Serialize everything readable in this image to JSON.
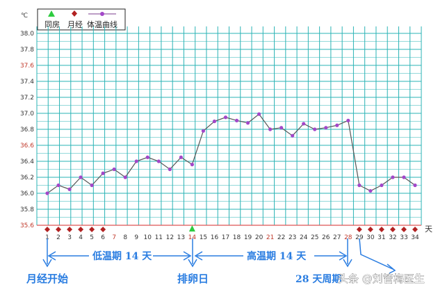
{
  "legend": {
    "intercourse": "同房",
    "period": "月经",
    "bbt_curve": "体温曲线"
  },
  "y_unit": "℃",
  "day_unit": "天",
  "annotations": {
    "period_start": "月经开始",
    "low_phase": "低温期 14 天",
    "ovulation_day": "排卵日",
    "high_phase": "高温期 14 天",
    "cycle_28": "28 天周期"
  },
  "watermark": "头条 @刘管梅医生",
  "colors": {
    "grid": "#2ab3b5",
    "curve": "#7b3b8c",
    "period_marker": "#b22222",
    "intercourse_marker": "#2ecc40",
    "annotation": "#2a7de1",
    "highlight_tick": "#c0392b"
  },
  "chart_data": {
    "type": "line",
    "ylim": [
      35.6,
      38.0
    ],
    "yticks": [
      "38.0",
      "37.8",
      "37.6",
      "37.4",
      "37.2",
      "37.0",
      "36.8",
      "36.6",
      "36.4",
      "36.2",
      "36.0",
      "35.8",
      "35.6"
    ],
    "highlighted_yticks": [
      "37.6",
      "36.6",
      "35.6"
    ],
    "x": [
      1,
      2,
      3,
      4,
      5,
      6,
      7,
      8,
      9,
      10,
      11,
      12,
      13,
      14,
      15,
      16,
      17,
      18,
      19,
      20,
      21,
      22,
      23,
      24,
      25,
      26,
      27,
      28,
      29,
      30,
      31,
      32,
      33,
      34
    ],
    "highlighted_xticks": [
      7,
      14,
      21,
      28
    ],
    "series": [
      {
        "name": "体温曲线",
        "values": [
          36.0,
          36.1,
          36.05,
          36.2,
          36.1,
          36.25,
          36.3,
          36.2,
          36.4,
          36.45,
          36.4,
          36.3,
          36.45,
          36.36,
          36.78,
          36.9,
          36.95,
          36.91,
          36.88,
          36.99,
          36.8,
          36.82,
          36.72,
          36.87,
          36.8,
          36.82,
          36.85,
          36.91,
          36.1,
          36.03,
          36.1,
          36.2,
          36.2,
          36.1
        ]
      }
    ],
    "period_days": [
      1,
      2,
      3,
      4,
      5,
      6,
      29,
      30,
      31,
      32,
      33,
      34
    ],
    "intercourse_days": [
      14
    ]
  }
}
